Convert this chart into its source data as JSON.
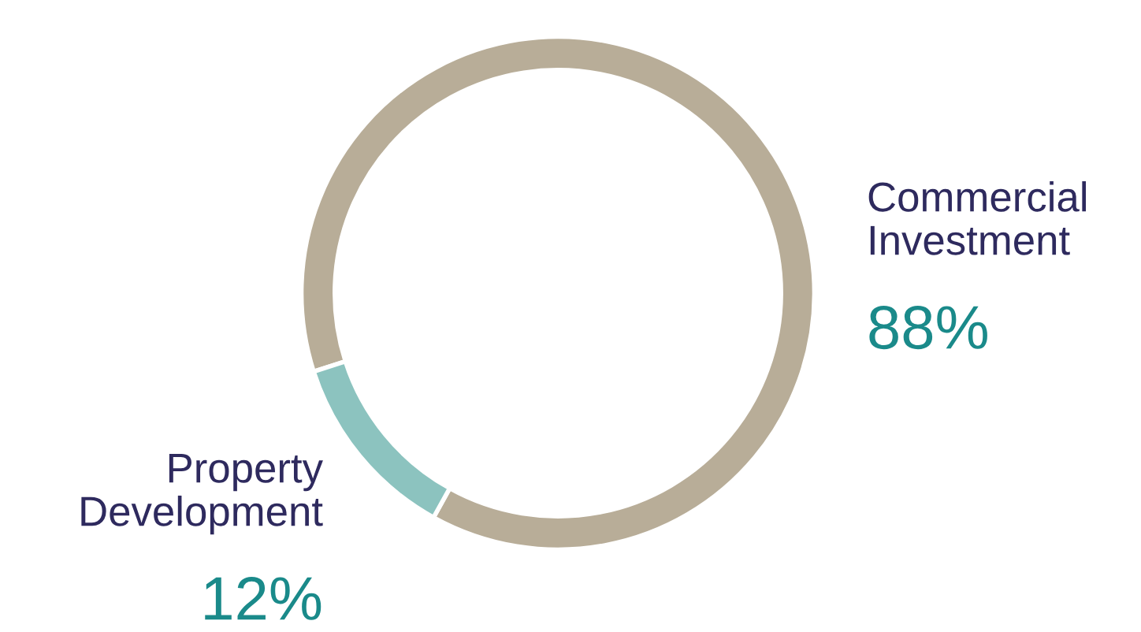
{
  "chart_data": {
    "type": "donut",
    "categories": [
      "Commercial Investment",
      "Property Development"
    ],
    "values": [
      88,
      12
    ],
    "colors": [
      "#b8ad98",
      "#8cc3bf"
    ],
    "value_labels": [
      "88%",
      "12%"
    ],
    "legend": false
  }
}
